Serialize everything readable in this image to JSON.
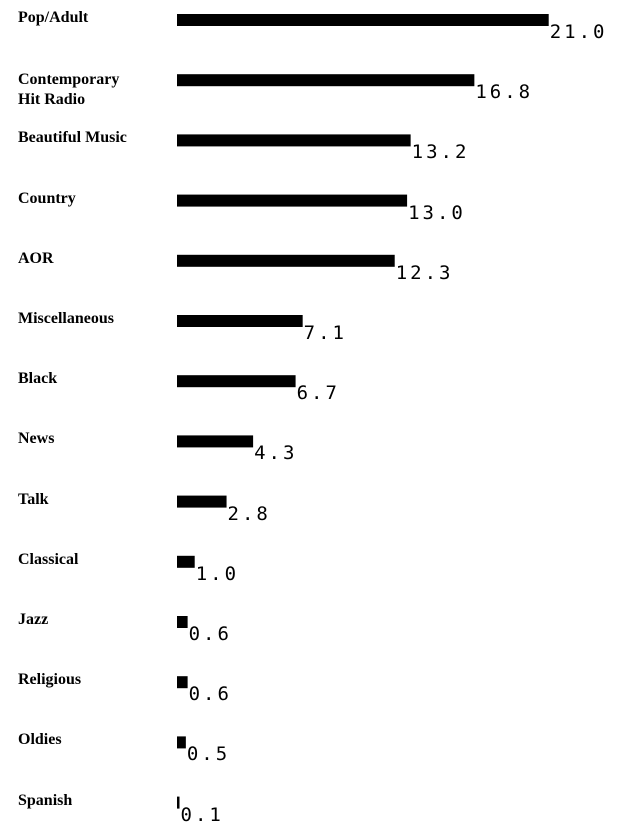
{
  "chart_data": {
    "type": "bar",
    "orientation": "horizontal",
    "categories": [
      "Pop/Adult",
      "Contemporary Hit Radio",
      "Beautiful Music",
      "Country",
      "AOR",
      "Miscellaneous",
      "Black",
      "News",
      "Talk",
      "Classical",
      "Jazz",
      "Religious",
      "Oldies",
      "Spanish"
    ],
    "values": [
      21.0,
      16.8,
      13.2,
      13.0,
      12.3,
      7.1,
      6.7,
      4.3,
      2.8,
      1.0,
      0.6,
      0.6,
      0.5,
      0.1
    ],
    "value_labels": [
      "21.0",
      "16.8",
      "13.2",
      "13.0",
      "12.3",
      "7.1",
      "6.7",
      "4.3",
      "2.8",
      "1.0",
      "0.6",
      "0.6",
      "0.5",
      "0.1"
    ],
    "color": "#000000"
  }
}
